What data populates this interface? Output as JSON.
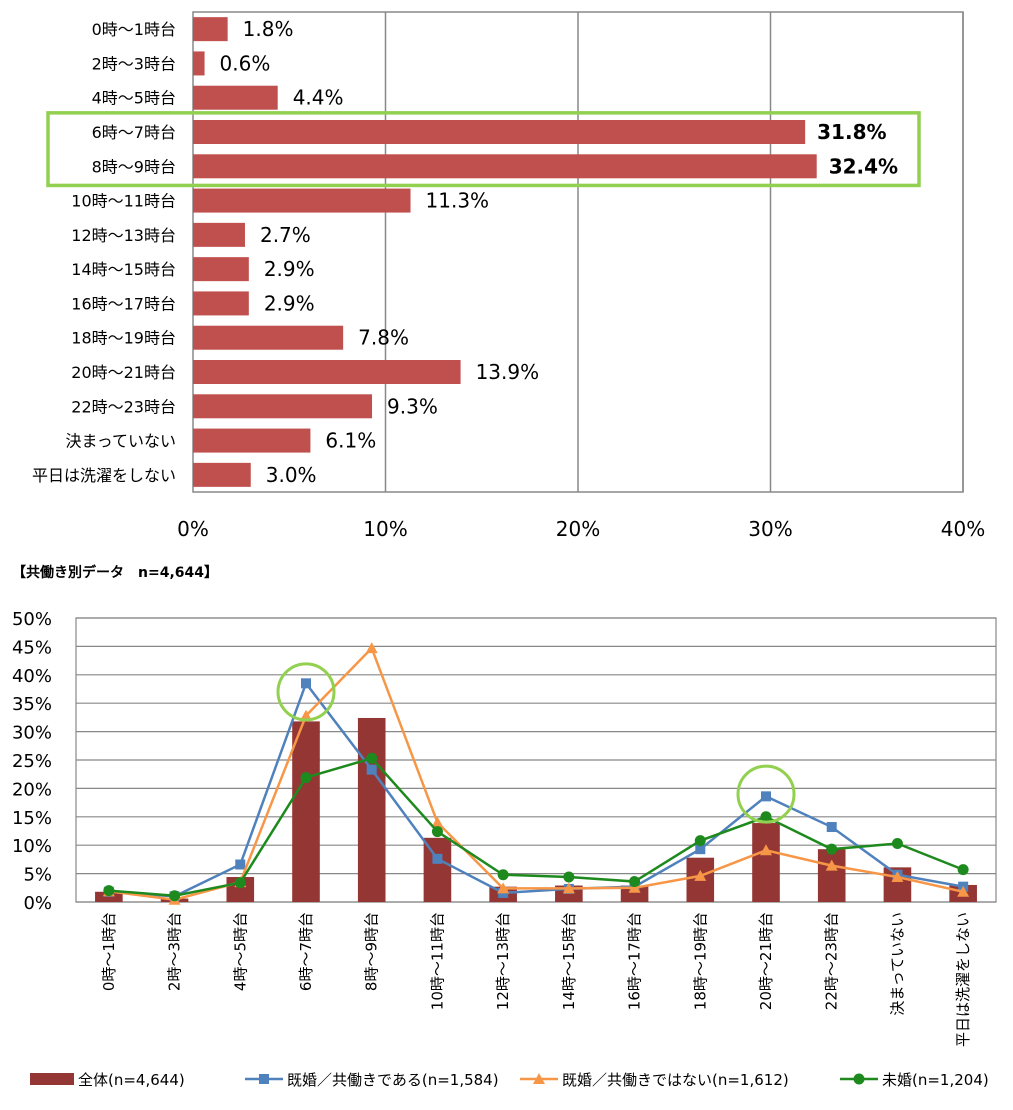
{
  "colors": {
    "bar": "#c0504d",
    "bar_dark": "#943634",
    "married_dual": "#4f81bd",
    "married_single": "#f79646",
    "unmarried": "#1e8a1e",
    "highlight": "#92d050",
    "grid": "#888888"
  },
  "chart_data": [
    {
      "type": "bar",
      "orientation": "horizontal",
      "categories": [
        "0時～1時台",
        "2時～3時台",
        "4時～5時台",
        "6時～7時台",
        "8時～9時台",
        "10時～11時台",
        "12時～13時台",
        "14時～15時台",
        "16時～17時台",
        "18時～19時台",
        "20時～21時台",
        "22時～23時台",
        "決まっていない",
        "平日は洗濯をしない"
      ],
      "values": [
        1.8,
        0.6,
        4.4,
        31.8,
        32.4,
        11.3,
        2.7,
        2.9,
        2.9,
        7.8,
        13.9,
        9.3,
        6.1,
        3.0
      ],
      "data_labels": [
        "1.8%",
        "0.6%",
        "4.4%",
        "31.8%",
        "32.4%",
        "11.3%",
        "2.7%",
        "2.9%",
        "2.9%",
        "7.8%",
        "13.9%",
        "9.3%",
        "6.1%",
        "3.0%"
      ],
      "bold_labels": [
        3,
        4
      ],
      "highlighted_categories": [
        "6時～7時台",
        "8時～9時台"
      ],
      "xlim": [
        0,
        40
      ],
      "xticks": [
        "0%",
        "10%",
        "20%",
        "30%",
        "40%"
      ],
      "grid": true
    },
    {
      "type": "bar+line",
      "subtitle": "【共働き別データ　n=4,644】",
      "categories": [
        "0時～1時台",
        "2時～3時台",
        "4時～5時台",
        "6時～7時台",
        "8時～9時台",
        "10時～11時台",
        "12時～13時台",
        "14時～15時台",
        "16時～17時台",
        "18時～19時台",
        "20時～21時台",
        "22時～23時台",
        "決まっていない",
        "平日は洗濯をしない"
      ],
      "ylim": [
        0,
        50
      ],
      "yticks": [
        "0%",
        "5%",
        "10%",
        "15%",
        "20%",
        "25%",
        "30%",
        "35%",
        "40%",
        "45%",
        "50%"
      ],
      "grid": true,
      "legend_position": "bottom",
      "series": [
        {
          "name": "全体(n=4,644)",
          "kind": "bar",
          "values": [
            1.8,
            0.6,
            4.4,
            31.8,
            32.4,
            11.3,
            2.7,
            2.9,
            2.9,
            7.8,
            13.9,
            9.3,
            6.1,
            3.0
          ]
        },
        {
          "name": "既婚／共働きである(n=1,584)",
          "kind": "line",
          "marker": "square",
          "values": [
            1.8,
            1.0,
            6.6,
            38.5,
            23.3,
            7.6,
            1.6,
            2.3,
            2.7,
            9.3,
            18.6,
            13.2,
            4.8,
            2.7
          ]
        },
        {
          "name": "既婚／共働きではない(n=1,612)",
          "kind": "line",
          "marker": "triangle",
          "values": [
            1.9,
            0.4,
            3.5,
            32.8,
            44.7,
            14.0,
            2.4,
            2.4,
            2.5,
            4.6,
            9.1,
            6.4,
            4.4,
            1.8
          ]
        },
        {
          "name": "未婚(n=1,204)",
          "kind": "line",
          "marker": "circle",
          "values": [
            2.0,
            1.1,
            3.4,
            21.9,
            25.3,
            12.4,
            4.8,
            4.4,
            3.6,
            10.8,
            15.0,
            9.3,
            10.3,
            5.7
          ]
        }
      ],
      "highlight_circles": [
        {
          "category": "6時～7時台",
          "value": 37
        },
        {
          "category": "20時～21時台",
          "value": 19
        }
      ]
    }
  ]
}
